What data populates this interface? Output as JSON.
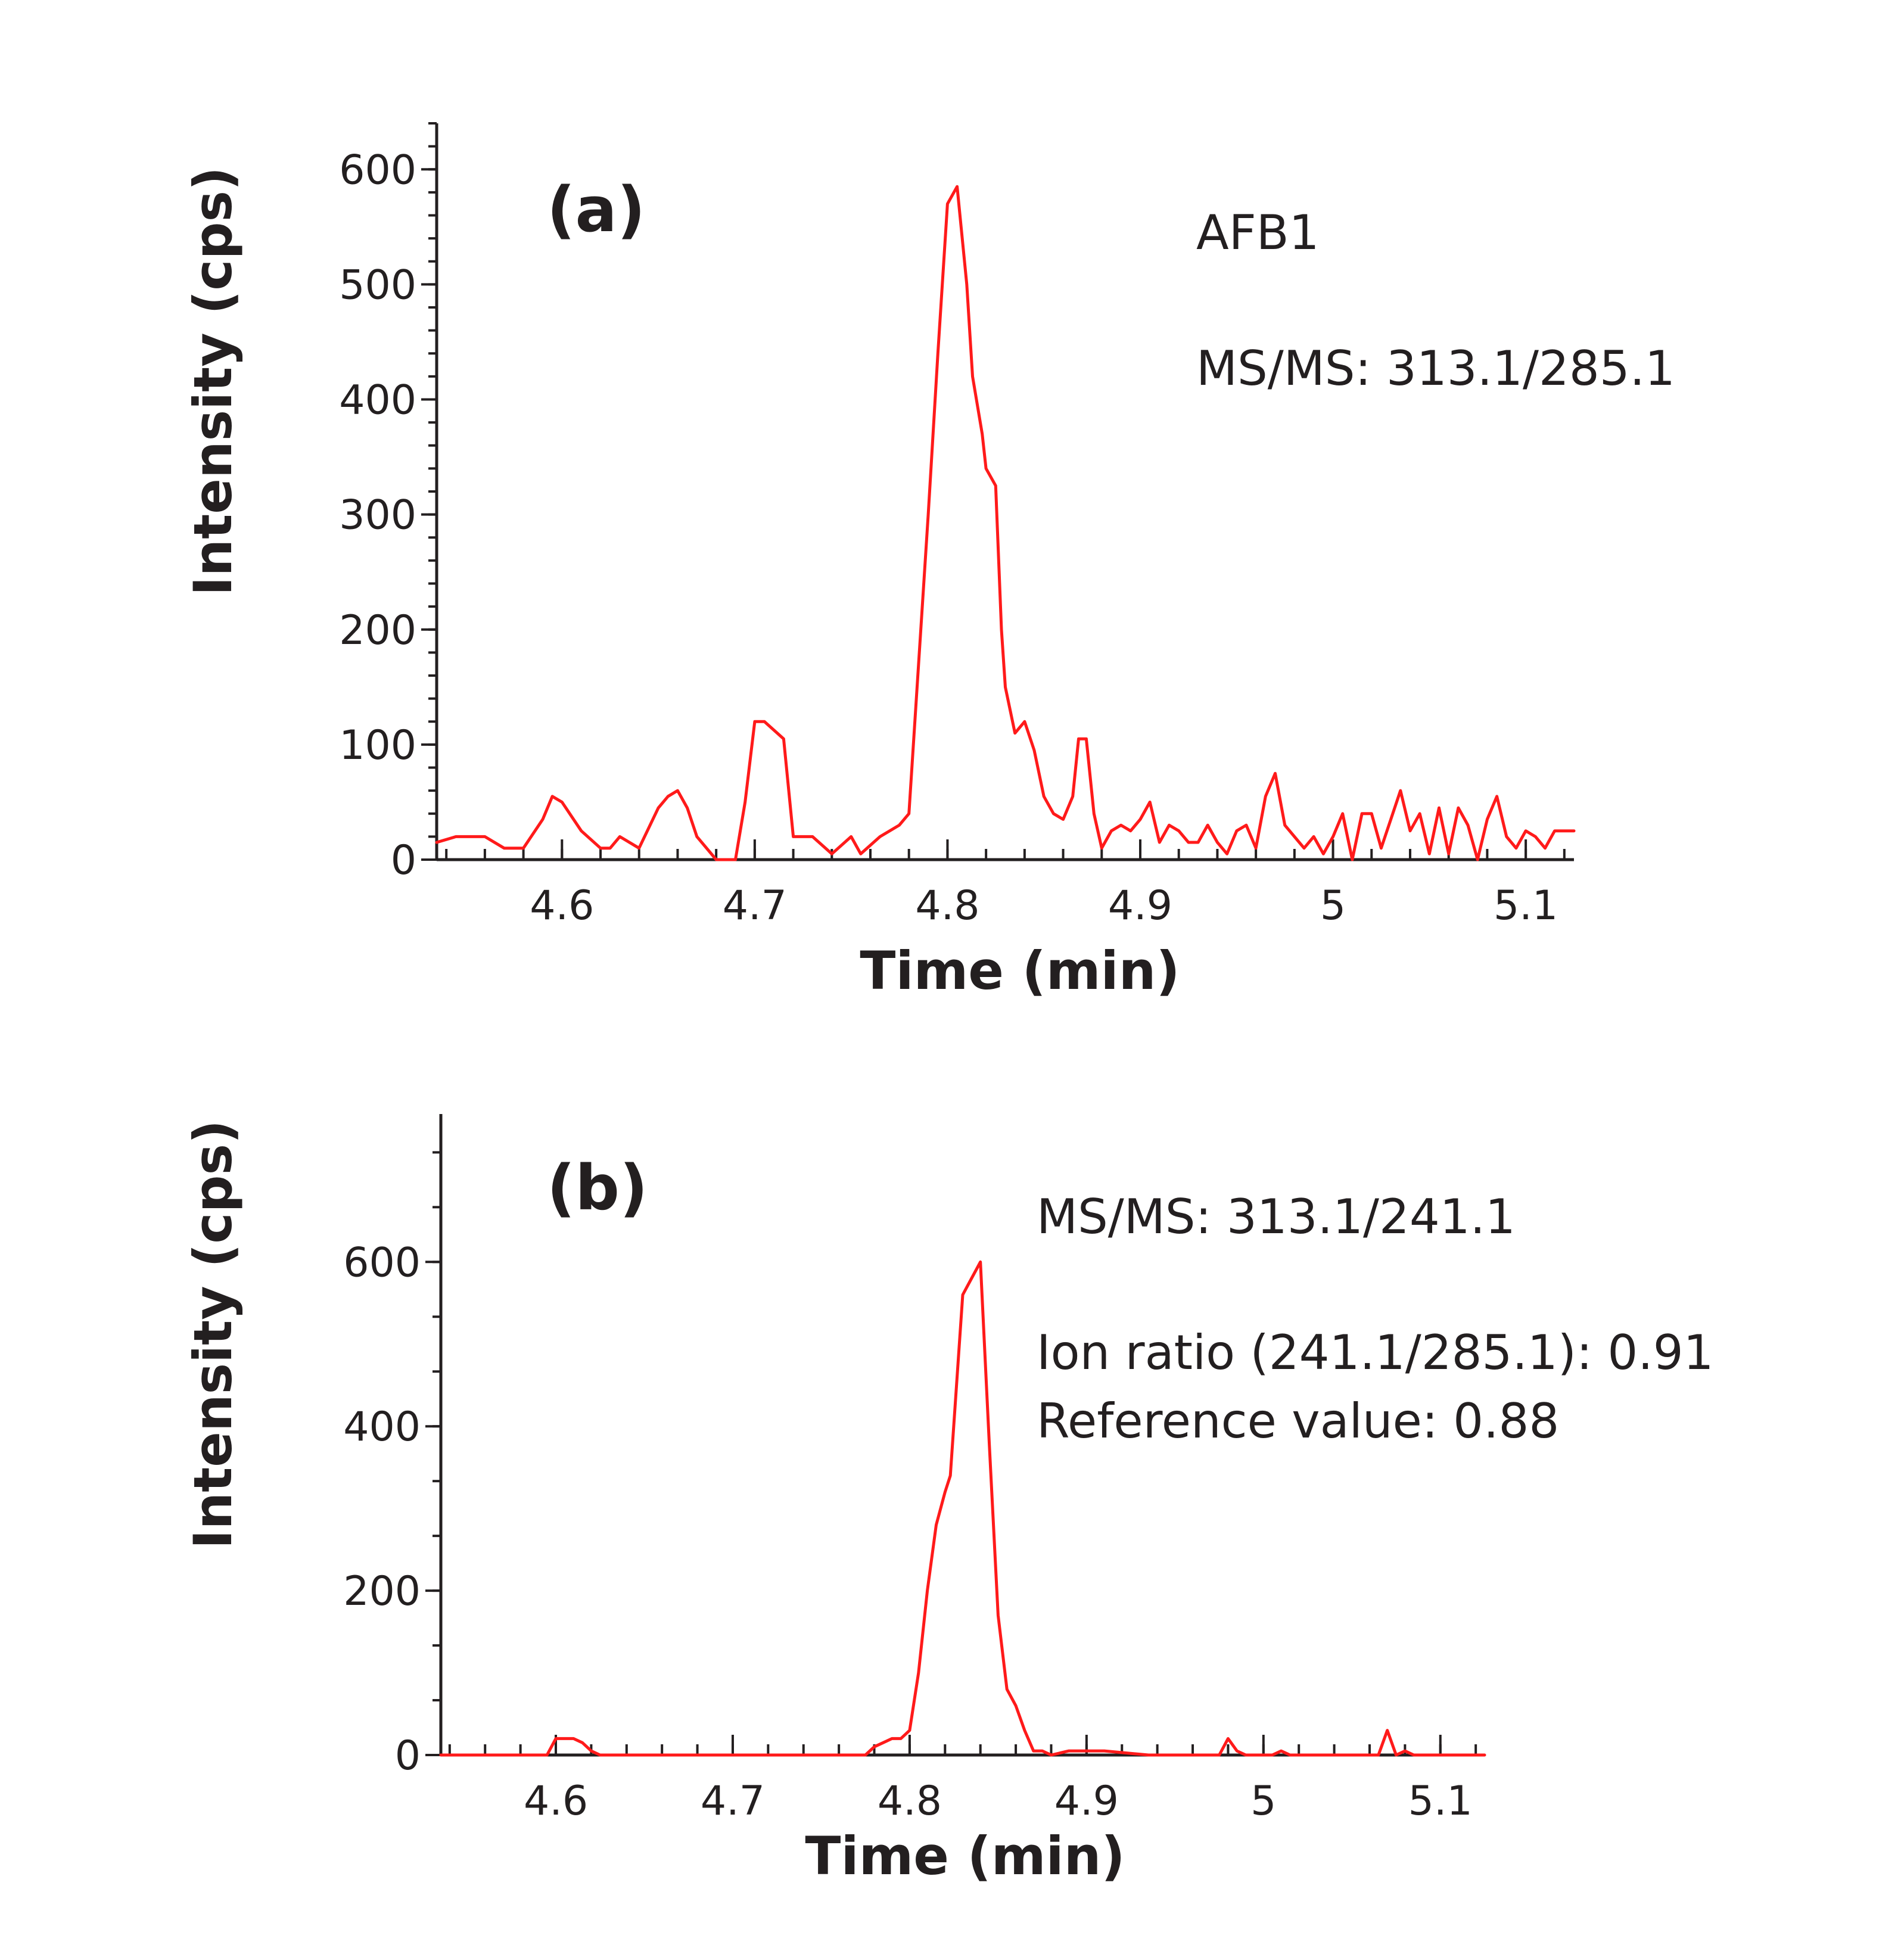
{
  "chart_data": [
    {
      "type": "line",
      "panel_label": "(a)",
      "xlabel": "Time (min)",
      "ylabel": "Intensity (cps)",
      "xlim": [
        4.535,
        5.125
      ],
      "ylim": [
        0,
        640
      ],
      "x_ticks": [
        "4.6",
        "4.7",
        "4.8",
        "4.9",
        "5",
        "5.1"
      ],
      "y_ticks": [
        "0",
        "100",
        "200",
        "300",
        "400",
        "500",
        "600"
      ],
      "annotations": [
        "AFB1",
        "MS/MS: 313.1/285.1"
      ],
      "series": [
        {
          "name": "MS/MS: 313.1/285.1",
          "color": "#ff1a1a",
          "x": [
            4.535,
            4.545,
            4.56,
            4.57,
            4.58,
            4.59,
            4.595,
            4.6,
            4.61,
            4.62,
            4.625,
            4.63,
            4.64,
            4.65,
            4.655,
            4.66,
            4.665,
            4.67,
            4.68,
            4.69,
            4.695,
            4.7,
            4.705,
            4.715,
            4.72,
            4.725,
            4.73,
            4.74,
            4.75,
            4.755,
            4.765,
            4.775,
            4.78,
            4.79,
            4.795,
            4.8,
            4.805,
            4.81,
            4.813,
            4.818,
            4.82,
            4.825,
            4.828,
            4.83,
            4.835,
            4.84,
            4.845,
            4.85,
            4.855,
            4.86,
            4.865,
            4.868,
            4.872,
            4.876,
            4.88,
            4.885,
            4.89,
            4.895,
            4.9,
            4.905,
            4.91,
            4.915,
            4.92,
            4.925,
            4.93,
            4.935,
            4.94,
            4.945,
            4.95,
            4.955,
            4.96,
            4.965,
            4.97,
            4.975,
            4.98,
            4.985,
            4.99,
            4.995,
            5.0,
            5.005,
            5.01,
            5.015,
            5.02,
            5.025,
            5.03,
            5.035,
            5.04,
            5.045,
            5.05,
            5.055,
            5.06,
            5.065,
            5.07,
            5.075,
            5.08,
            5.085,
            5.09,
            5.095,
            5.1,
            5.105,
            5.11,
            5.115,
            5.125
          ],
          "y": [
            15,
            20,
            20,
            10,
            10,
            35,
            55,
            50,
            25,
            10,
            10,
            20,
            10,
            45,
            55,
            60,
            45,
            20,
            0,
            0,
            50,
            120,
            120,
            105,
            20,
            20,
            20,
            5,
            20,
            5,
            20,
            30,
            40,
            300,
            440,
            570,
            585,
            500,
            420,
            370,
            340,
            325,
            200,
            150,
            110,
            120,
            95,
            55,
            40,
            35,
            55,
            105,
            105,
            40,
            10,
            25,
            30,
            25,
            35,
            50,
            15,
            30,
            25,
            15,
            15,
            30,
            15,
            5,
            25,
            30,
            10,
            55,
            75,
            30,
            20,
            10,
            20,
            5,
            20,
            40,
            0,
            40,
            40,
            10,
            35,
            60,
            25,
            40,
            5,
            45,
            5,
            45,
            30,
            0,
            35,
            55,
            20,
            10,
            25,
            20,
            10,
            25,
            25
          ]
        }
      ]
    },
    {
      "type": "line",
      "panel_label": "(b)",
      "xlabel": "Time (min)",
      "ylabel": "Intensity (cps)",
      "xlim": [
        4.535,
        5.125
      ],
      "ylim": [
        0,
        780
      ],
      "x_ticks": [
        "4.6",
        "4.7",
        "4.8",
        "4.9",
        "5",
        "5.1"
      ],
      "y_ticks": [
        "0",
        "200",
        "400",
        "600"
      ],
      "annotations": [
        "MS/MS: 313.1/241.1",
        "Ion ratio (241.1/285.1): 0.91",
        "Reference value: 0.88"
      ],
      "series": [
        {
          "name": "MS/MS: 313.1/241.1",
          "color": "#ff1a1a",
          "x": [
            4.535,
            4.595,
            4.6,
            4.61,
            4.615,
            4.62,
            4.625,
            4.775,
            4.78,
            4.785,
            4.79,
            4.795,
            4.8,
            4.805,
            4.81,
            4.815,
            4.82,
            4.823,
            4.83,
            4.835,
            4.84,
            4.845,
            4.85,
            4.855,
            4.86,
            4.865,
            4.87,
            4.875,
            4.88,
            4.89,
            4.9,
            4.91,
            4.935,
            4.975,
            4.98,
            4.985,
            4.99,
            5.0,
            5.005,
            5.01,
            5.015,
            5.02,
            5.065,
            5.07,
            5.075,
            5.08,
            5.085,
            5.09,
            5.095,
            5.1,
            5.105,
            5.11,
            5.125
          ],
          "y": [
            0,
            0,
            20,
            20,
            15,
            5,
            0,
            0,
            10,
            15,
            20,
            20,
            30,
            100,
            200,
            280,
            320,
            340,
            560,
            580,
            600,
            380,
            170,
            80,
            60,
            30,
            5,
            5,
            0,
            5,
            5,
            5,
            0,
            0,
            20,
            5,
            0,
            0,
            0,
            5,
            0,
            0,
            0,
            30,
            0,
            5,
            0,
            0,
            0,
            0,
            0,
            0,
            0
          ]
        }
      ]
    }
  ]
}
